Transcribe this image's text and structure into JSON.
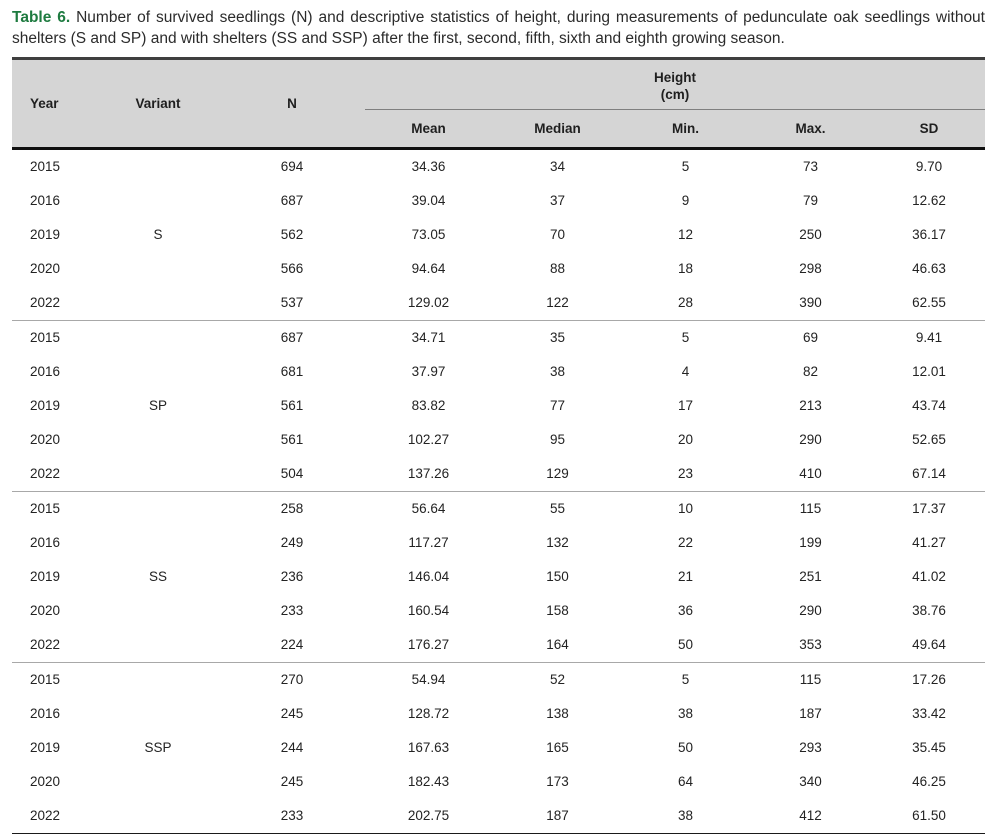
{
  "caption": {
    "label": "Table 6.",
    "text": "Number of survived seedlings (N) and descriptive statistics of height, during measurements of pedunculate oak seedlings without shelters (S and SP) and with shelters (SS and SSP) after the first, second, fifth, sixth and eighth growing season."
  },
  "colors": {
    "caption_label_green": "#1e7b40",
    "header_background": "#d5d5d5",
    "body_text": "#232323"
  },
  "table": {
    "columns": {
      "year": "Year",
      "variant": "Variant",
      "n": "N",
      "height_group": "Height",
      "height_unit": "(cm)",
      "mean": "Mean",
      "median": "Median",
      "min": "Min.",
      "max": "Max.",
      "sd": "SD"
    },
    "groups": [
      {
        "variant": "S",
        "rows": [
          {
            "year": "2015",
            "n": "694",
            "mean": "34.36",
            "median": "34",
            "min": "5",
            "max": "73",
            "sd": "9.70"
          },
          {
            "year": "2016",
            "n": "687",
            "mean": "39.04",
            "median": "37",
            "min": "9",
            "max": "79",
            "sd": "12.62"
          },
          {
            "year": "2019",
            "n": "562",
            "mean": "73.05",
            "median": "70",
            "min": "12",
            "max": "250",
            "sd": "36.17"
          },
          {
            "year": "2020",
            "n": "566",
            "mean": "94.64",
            "median": "88",
            "min": "18",
            "max": "298",
            "sd": "46.63"
          },
          {
            "year": "2022",
            "n": "537",
            "mean": "129.02",
            "median": "122",
            "min": "28",
            "max": "390",
            "sd": "62.55"
          }
        ]
      },
      {
        "variant": "SP",
        "rows": [
          {
            "year": "2015",
            "n": "687",
            "mean": "34.71",
            "median": "35",
            "min": "5",
            "max": "69",
            "sd": "9.41"
          },
          {
            "year": "2016",
            "n": "681",
            "mean": "37.97",
            "median": "38",
            "min": "4",
            "max": "82",
            "sd": "12.01"
          },
          {
            "year": "2019",
            "n": "561",
            "mean": "83.82",
            "median": "77",
            "min": "17",
            "max": "213",
            "sd": "43.74"
          },
          {
            "year": "2020",
            "n": "561",
            "mean": "102.27",
            "median": "95",
            "min": "20",
            "max": "290",
            "sd": "52.65"
          },
          {
            "year": "2022",
            "n": "504",
            "mean": "137.26",
            "median": "129",
            "min": "23",
            "max": "410",
            "sd": "67.14"
          }
        ]
      },
      {
        "variant": "SS",
        "rows": [
          {
            "year": "2015",
            "n": "258",
            "mean": "56.64",
            "median": "55",
            "min": "10",
            "max": "115",
            "sd": "17.37"
          },
          {
            "year": "2016",
            "n": "249",
            "mean": "117.27",
            "median": "132",
            "min": "22",
            "max": "199",
            "sd": "41.27"
          },
          {
            "year": "2019",
            "n": "236",
            "mean": "146.04",
            "median": "150",
            "min": "21",
            "max": "251",
            "sd": "41.02"
          },
          {
            "year": "2020",
            "n": "233",
            "mean": "160.54",
            "median": "158",
            "min": "36",
            "max": "290",
            "sd": "38.76"
          },
          {
            "year": "2022",
            "n": "224",
            "mean": "176.27",
            "median": "164",
            "min": "50",
            "max": "353",
            "sd": "49.64"
          }
        ]
      },
      {
        "variant": "SSP",
        "rows": [
          {
            "year": "2015",
            "n": "270",
            "mean": "54.94",
            "median": "52",
            "min": "5",
            "max": "115",
            "sd": "17.26"
          },
          {
            "year": "2016",
            "n": "245",
            "mean": "128.72",
            "median": "138",
            "min": "38",
            "max": "187",
            "sd": "33.42"
          },
          {
            "year": "2019",
            "n": "244",
            "mean": "167.63",
            "median": "165",
            "min": "50",
            "max": "293",
            "sd": "35.45"
          },
          {
            "year": "2020",
            "n": "245",
            "mean": "182.43",
            "median": "173",
            "min": "64",
            "max": "340",
            "sd": "46.25"
          },
          {
            "year": "2022",
            "n": "233",
            "mean": "202.75",
            "median": "187",
            "min": "38",
            "max": "412",
            "sd": "61.50"
          }
        ]
      }
    ]
  }
}
